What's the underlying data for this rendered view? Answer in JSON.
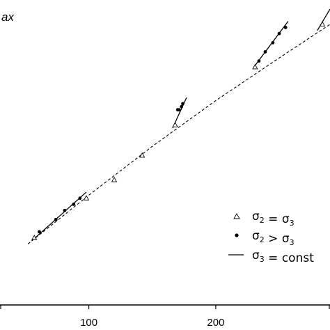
{
  "chart_data": {
    "type": "scatter",
    "y_title_fragment": "ax",
    "xlabel": "",
    "x_ticks": [
      100,
      200
    ],
    "xlim": [
      30,
      290
    ],
    "ylim": [
      0,
      100
    ],
    "grid": false,
    "legend_position": "bottom-right",
    "series": [
      {
        "name": "σ2 = σ3",
        "marker": "open-triangle",
        "points": [
          {
            "x": 57,
            "y": 22
          },
          {
            "x": 98,
            "y": 35
          },
          {
            "x": 120,
            "y": 41
          },
          {
            "x": 142,
            "y": 49
          },
          {
            "x": 168,
            "y": 59
          },
          {
            "x": 231,
            "y": 78
          },
          {
            "x": 284,
            "y": 92
          }
        ]
      },
      {
        "name": "σ2 > σ3",
        "marker": "filled-circle",
        "points": [
          {
            "x": 61,
            "y": 24
          },
          {
            "x": 74,
            "y": 28
          },
          {
            "x": 81,
            "y": 31
          },
          {
            "x": 88,
            "y": 33
          },
          {
            "x": 93,
            "y": 35
          },
          {
            "x": 170,
            "y": 64
          },
          {
            "x": 171,
            "y": 64
          },
          {
            "x": 173,
            "y": 65
          },
          {
            "x": 174,
            "y": 66
          },
          {
            "x": 234,
            "y": 80
          },
          {
            "x": 239,
            "y": 83
          },
          {
            "x": 245,
            "y": 86
          },
          {
            "x": 250,
            "y": 89
          },
          {
            "x": 255,
            "y": 91
          }
        ]
      }
    ],
    "fit_curve": {
      "style": "dashed",
      "points": [
        {
          "x": 52,
          "y": 20
        },
        {
          "x": 100,
          "y": 36
        },
        {
          "x": 150,
          "y": 52
        },
        {
          "x": 200,
          "y": 67
        },
        {
          "x": 250,
          "y": 81
        },
        {
          "x": 290,
          "y": 92
        }
      ]
    },
    "const_lines": {
      "name": "σ3 = const",
      "segments": [
        [
          {
            "x": 55,
            "y": 21
          },
          {
            "x": 98,
            "y": 37
          }
        ],
        [
          {
            "x": 166,
            "y": 58
          },
          {
            "x": 177,
            "y": 68
          }
        ],
        [
          {
            "x": 230,
            "y": 78
          },
          {
            "x": 257,
            "y": 93
          }
        ],
        [
          {
            "x": 280,
            "y": 90
          },
          {
            "x": 290,
            "y": 97
          }
        ]
      ]
    },
    "legend": [
      {
        "symbol": "open-triangle",
        "base": "σ",
        "sub1": "2",
        "op": " = ",
        "base2": "σ",
        "sub2": "3"
      },
      {
        "symbol": "filled-circle",
        "base": "σ",
        "sub1": "2",
        "op": " > ",
        "base2": "σ",
        "sub2": "3"
      },
      {
        "symbol": "line",
        "base": "σ",
        "sub1": "3",
        "op": " = const",
        "base2": "",
        "sub2": ""
      }
    ]
  }
}
